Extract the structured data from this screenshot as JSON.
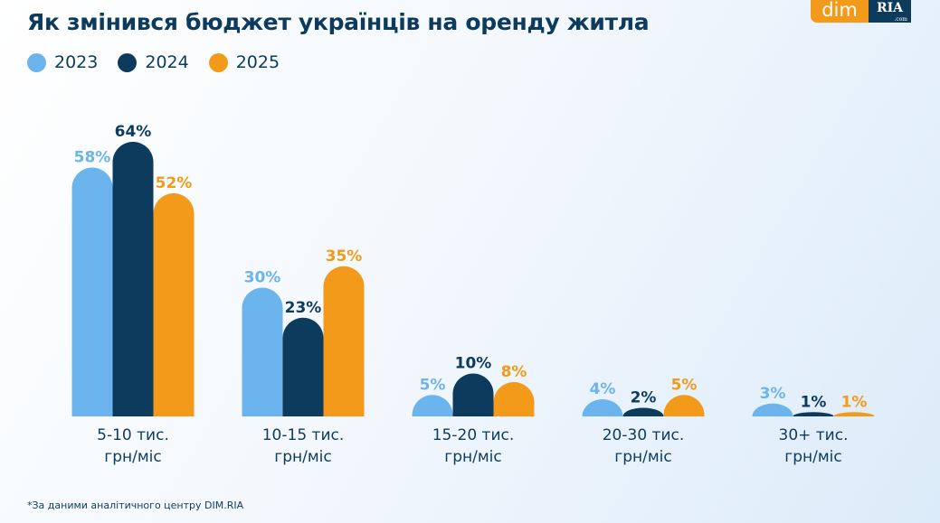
{
  "title": "Як змінився бюджет українців на оренду житла",
  "logo": {
    "left": "dim",
    "right": "RIA",
    "suffix": ".com"
  },
  "footnote": "*За даними аналітичного центру DIM.RIA",
  "chart_data": {
    "type": "bar",
    "title": "Як змінився бюджет українців на оренду житла",
    "categories": [
      [
        "5-10 тис.",
        "грн/міс"
      ],
      [
        "10-15 тис.",
        "грн/міс"
      ],
      [
        "15-20 тис.",
        "грн/міс"
      ],
      [
        "20-30 тис.",
        "грн/міс"
      ],
      [
        "30+ тис.",
        "грн/міс"
      ]
    ],
    "series": [
      {
        "name": "2023",
        "color": "#6cb4ee",
        "values": [
          58,
          30,
          5,
          4,
          3
        ]
      },
      {
        "name": "2024",
        "color": "#0d3b5e",
        "values": [
          64,
          23,
          10,
          2,
          1
        ]
      },
      {
        "name": "2025",
        "color": "#f39a1b",
        "values": [
          52,
          35,
          8,
          5,
          1
        ]
      }
    ],
    "unit": "%",
    "legend_position": "top-left",
    "grid": false,
    "ylim": [
      0,
      64
    ]
  }
}
